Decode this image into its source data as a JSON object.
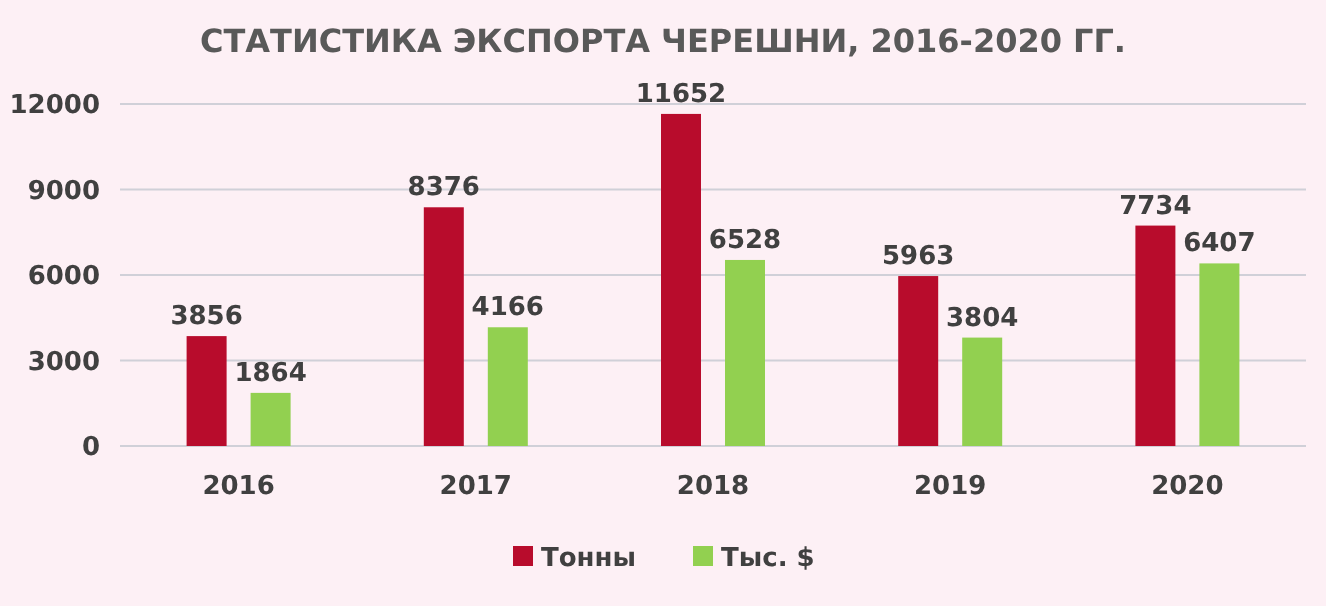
{
  "chart_data": {
    "type": "bar",
    "title": "СТАТИСТИКА ЭКСПОРТА ЧЕРЕШНИ, 2016-2020 ГГ.",
    "categories": [
      "2016",
      "2017",
      "2018",
      "2019",
      "2020"
    ],
    "series": [
      {
        "name": "Тонны",
        "color": "#b80c2c",
        "values": [
          3856,
          8376,
          11652,
          5963,
          7734
        ]
      },
      {
        "name": "Тыс. $",
        "color": "#92d050",
        "values": [
          1864,
          4166,
          6528,
          3804,
          6407
        ]
      }
    ],
    "ylim": [
      0,
      12000
    ],
    "yticks": [
      0,
      3000,
      6000,
      9000,
      12000
    ],
    "grid": "y",
    "legend": "bottom",
    "data_labels": true
  }
}
